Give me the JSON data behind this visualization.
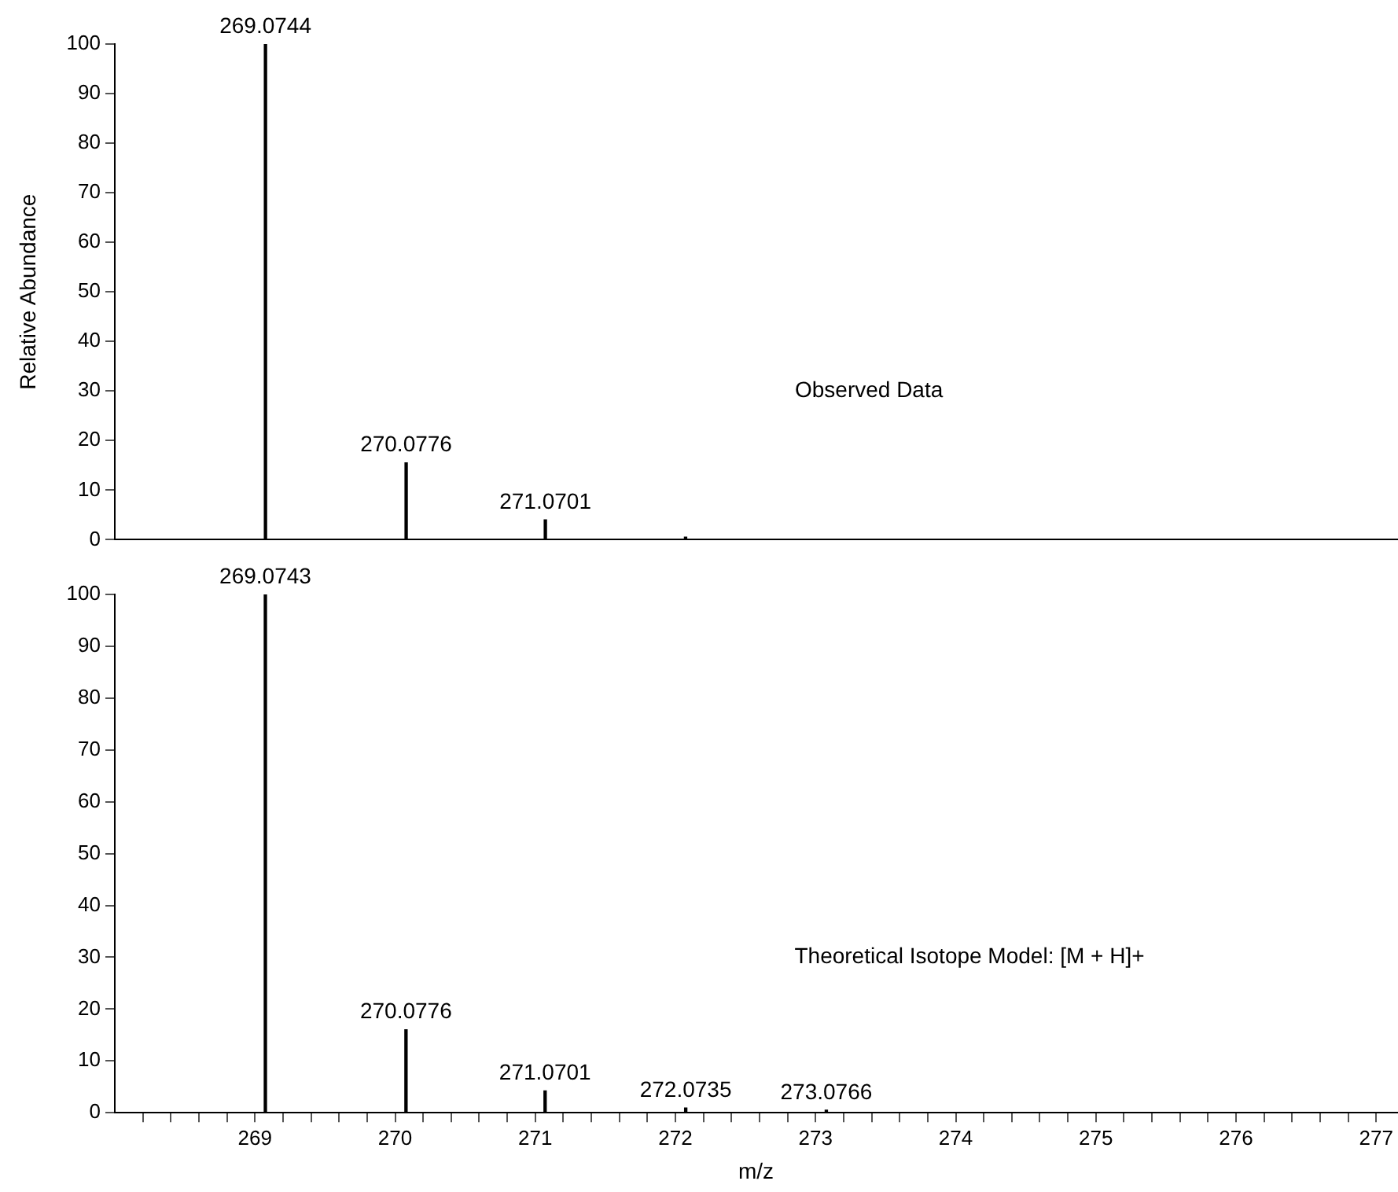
{
  "chart_data": [
    {
      "type": "bar",
      "ylabel": "Relative Abundance",
      "x": [
        269.0744,
        270.0776,
        271.0701,
        272.07
      ],
      "values": [
        100,
        15.5,
        4,
        0.5
      ],
      "color": "#000000",
      "xlim": [
        268,
        277.15
      ],
      "ylim": [
        0,
        100
      ],
      "yticks": [
        0,
        10,
        20,
        30,
        40,
        50,
        60,
        70,
        80,
        90,
        100
      ],
      "tick_labels": "y",
      "annotations": [
        {
          "text": "269.0744",
          "x": 269.0744,
          "y": 100
        },
        {
          "text": "270.0776",
          "x": 270.0776,
          "y": 15.5
        },
        {
          "text": "271.0701",
          "x": 271.0701,
          "y": 4
        },
        "Observed Data"
      ]
    },
    {
      "type": "bar",
      "xlabel": "m/z",
      "x": [
        269.0743,
        270.0776,
        271.0701,
        272.0735,
        273.0766
      ],
      "values": [
        100,
        16,
        4.2,
        0.9,
        0.5
      ],
      "color": "#000000",
      "xlim": [
        268,
        277.15
      ],
      "xticks": [
        {
          "value": 268.2,
          "label": null
        },
        {
          "value": 268.4,
          "label": null
        },
        {
          "value": 268.6,
          "label": null
        },
        {
          "value": 268.8,
          "label": null
        },
        269,
        {
          "value": 269.2,
          "label": null
        },
        {
          "value": 269.4,
          "label": null
        },
        {
          "value": 269.6,
          "label": null
        },
        {
          "value": 269.8,
          "label": null
        },
        270,
        {
          "value": 270.2,
          "label": null
        },
        {
          "value": 270.4,
          "label": null
        },
        {
          "value": 270.6,
          "label": null
        },
        {
          "value": 270.8,
          "label": null
        },
        271,
        {
          "value": 271.2,
          "label": null
        },
        {
          "value": 271.4,
          "label": null
        },
        {
          "value": 271.6,
          "label": null
        },
        {
          "value": 271.8,
          "label": null
        },
        272,
        {
          "value": 272.2,
          "label": null
        },
        {
          "value": 272.4,
          "label": null
        },
        {
          "value": 272.6,
          "label": null
        },
        {
          "value": 272.8,
          "label": null
        },
        273,
        {
          "value": 273.2,
          "label": null
        },
        {
          "value": 273.4,
          "label": null
        },
        {
          "value": 273.6,
          "label": null
        },
        {
          "value": 273.8,
          "label": null
        },
        274,
        {
          "value": 274.2,
          "label": null
        },
        {
          "value": 274.4,
          "label": null
        },
        {
          "value": 274.6,
          "label": null
        },
        {
          "value": 274.8,
          "label": null
        },
        275,
        {
          "value": 275.2,
          "label": null
        },
        {
          "value": 275.4,
          "label": null
        },
        {
          "value": 275.6,
          "label": null
        },
        {
          "value": 275.8,
          "label": null
        },
        276,
        {
          "value": 276.2,
          "label": null
        },
        {
          "value": 276.4,
          "label": null
        },
        {
          "value": 276.6,
          "label": null
        },
        {
          "value": 276.8,
          "label": null
        },
        277
      ],
      "ylim": [
        0,
        100
      ],
      "yticks": [
        0,
        10,
        20,
        30,
        40,
        50,
        60,
        70,
        80,
        90,
        100
      ],
      "annotations": [
        {
          "text": "269.0743",
          "x": 269.0743,
          "y": 100
        },
        {
          "text": "270.0776",
          "x": 270.0776,
          "y": 16
        },
        {
          "text": "271.0701",
          "x": 271.0701,
          "y": 4.2
        },
        {
          "text": "272.0735",
          "x": 272.0735,
          "y": 0.9
        },
        {
          "text": "273.0766",
          "x": 273.0766,
          "y": 0.5
        },
        "Theoretical Isotope Model: [M + H]+"
      ]
    }
  ]
}
